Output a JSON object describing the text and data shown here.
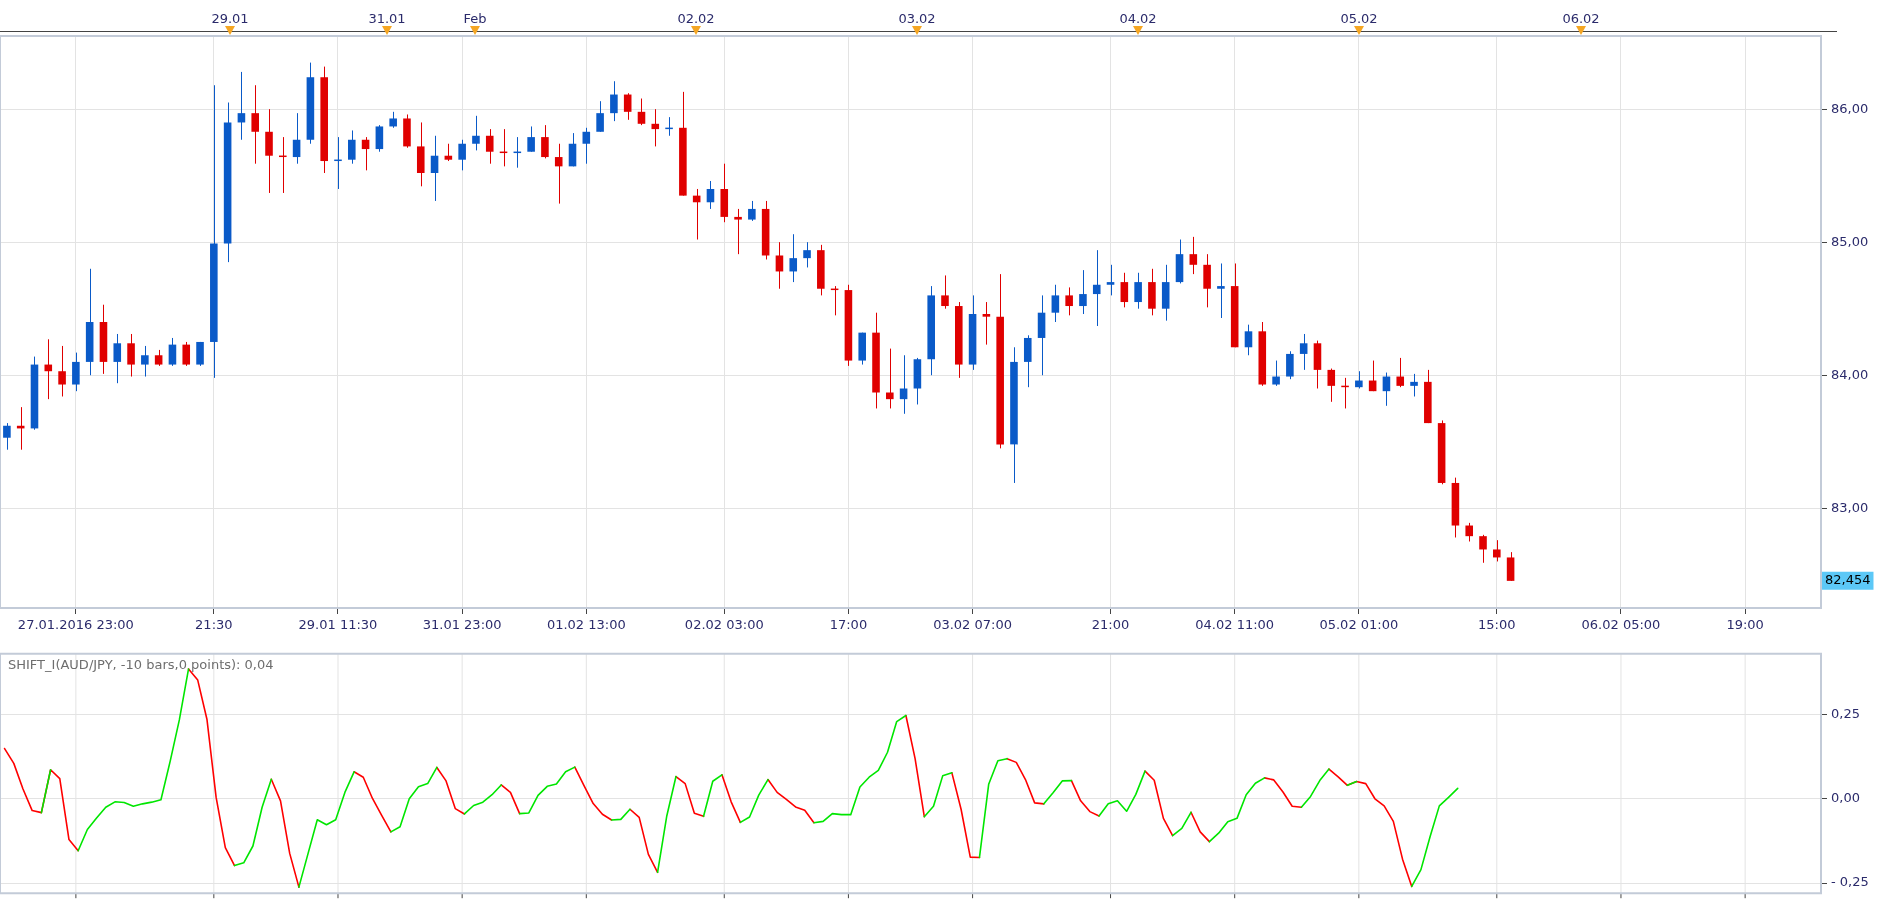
{
  "chart_data": [
    {
      "type": "candlestick",
      "categories": [
        null,
        null,
        null,
        null,
        null,
        "27.01.2016 23:00",
        null,
        null,
        null,
        null,
        null,
        null,
        null,
        null,
        null,
        "21:30",
        null,
        null,
        null,
        null,
        null,
        null,
        null,
        null,
        "29.01 11:30",
        null,
        null,
        null,
        null,
        null,
        null,
        null,
        null,
        "31.01 23:00",
        null,
        null,
        null,
        null,
        null,
        null,
        null,
        null,
        "01.02 13:00",
        null,
        null,
        null,
        null,
        null,
        null,
        null,
        null,
        null,
        "02.02 03:00",
        null,
        null,
        null,
        null,
        null,
        null,
        null,
        null,
        "17:00",
        null,
        null,
        null,
        null,
        null,
        null,
        null,
        null,
        "03.02 07:00",
        null,
        null,
        null,
        null,
        null,
        null,
        null,
        null,
        null,
        "21:00",
        null,
        null,
        null,
        null,
        null,
        null,
        null,
        null,
        "04.02 11:00",
        null,
        null,
        null,
        null,
        null,
        null,
        null,
        null,
        "05.02 01:00",
        null,
        null,
        null,
        null,
        null,
        null,
        null,
        null,
        null,
        "15:00",
        null,
        null,
        null,
        null,
        null,
        null,
        null,
        null,
        "06.02 05:00",
        null,
        null,
        null,
        null,
        null,
        null,
        null,
        null,
        "19:00",
        null,
        null,
        null,
        null,
        null
      ],
      "ohlc": [
        [
          83.53,
          83.64,
          83.44,
          83.62
        ],
        [
          83.62,
          83.76,
          83.44,
          83.6
        ],
        [
          83.6,
          84.14,
          83.59,
          84.08
        ],
        [
          84.08,
          84.27,
          83.82,
          84.03
        ],
        [
          84.03,
          84.22,
          83.84,
          83.93
        ],
        [
          83.93,
          84.17,
          83.88,
          84.1
        ],
        [
          84.1,
          84.8,
          84.0,
          84.4
        ],
        [
          84.4,
          84.53,
          84.01,
          84.1
        ],
        [
          84.1,
          84.31,
          83.94,
          84.24
        ],
        [
          84.24,
          84.31,
          83.99,
          84.08
        ],
        [
          84.08,
          84.22,
          83.99,
          84.15
        ],
        [
          84.15,
          84.19,
          84.07,
          84.08
        ],
        [
          84.08,
          84.28,
          84.07,
          84.23
        ],
        [
          84.23,
          84.25,
          84.07,
          84.08
        ],
        [
          84.08,
          84.25,
          84.07,
          84.25
        ],
        [
          84.25,
          86.18,
          83.98,
          84.99
        ],
        [
          84.99,
          86.05,
          84.85,
          85.9
        ],
        [
          85.9,
          86.28,
          85.77,
          85.97
        ],
        [
          85.97,
          86.18,
          85.59,
          85.83
        ],
        [
          85.83,
          86.0,
          85.37,
          85.65
        ],
        [
          85.65,
          85.79,
          85.37,
          85.64
        ],
        [
          85.64,
          85.97,
          85.59,
          85.77
        ],
        [
          85.77,
          86.35,
          85.74,
          86.24
        ],
        [
          86.24,
          86.32,
          85.52,
          85.61
        ],
        [
          85.61,
          85.79,
          85.4,
          85.62
        ],
        [
          85.62,
          85.84,
          85.59,
          85.77
        ],
        [
          85.77,
          85.79,
          85.54,
          85.7
        ],
        [
          85.7,
          85.88,
          85.68,
          85.87
        ],
        [
          85.87,
          85.98,
          85.86,
          85.93
        ],
        [
          85.93,
          85.96,
          85.71,
          85.72
        ],
        [
          85.72,
          85.9,
          85.42,
          85.52
        ],
        [
          85.52,
          85.8,
          85.31,
          85.65
        ],
        [
          85.65,
          85.74,
          85.61,
          85.62
        ],
        [
          85.62,
          85.77,
          85.54,
          85.74
        ],
        [
          85.74,
          85.95,
          85.69,
          85.8
        ],
        [
          85.8,
          85.85,
          85.59,
          85.68
        ],
        [
          85.68,
          85.85,
          85.57,
          85.67
        ],
        [
          85.67,
          85.79,
          85.56,
          85.68
        ],
        [
          85.68,
          85.87,
          85.68,
          85.79
        ],
        [
          85.79,
          85.88,
          85.63,
          85.64
        ],
        [
          85.64,
          85.74,
          85.29,
          85.57
        ],
        [
          85.57,
          85.82,
          85.57,
          85.74
        ],
        [
          85.74,
          85.86,
          85.59,
          85.83
        ],
        [
          85.83,
          86.06,
          85.83,
          85.97
        ],
        [
          85.97,
          86.21,
          85.91,
          86.11
        ],
        [
          86.11,
          86.12,
          85.92,
          85.98
        ],
        [
          85.98,
          86.08,
          85.88,
          85.89
        ],
        [
          85.89,
          86.0,
          85.72,
          85.85
        ],
        [
          85.85,
          85.94,
          85.8,
          85.86
        ],
        [
          85.86,
          86.13,
          85.35,
          85.35
        ],
        [
          85.35,
          85.4,
          85.02,
          85.3
        ],
        [
          85.3,
          85.46,
          85.25,
          85.4
        ],
        [
          85.4,
          85.59,
          85.15,
          85.19
        ],
        [
          85.19,
          85.25,
          84.91,
          85.17
        ],
        [
          85.17,
          85.31,
          85.16,
          85.25
        ],
        [
          85.25,
          85.31,
          84.87,
          84.9
        ],
        [
          84.9,
          85.0,
          84.65,
          84.78
        ],
        [
          84.78,
          85.06,
          84.7,
          84.88
        ],
        [
          84.88,
          85.0,
          84.81,
          84.94
        ],
        [
          84.94,
          84.98,
          84.6,
          84.65
        ],
        [
          84.65,
          84.67,
          84.45,
          84.64
        ],
        [
          84.64,
          84.68,
          84.07,
          84.11
        ],
        [
          84.11,
          84.32,
          84.08,
          84.32
        ],
        [
          84.32,
          84.47,
          83.75,
          83.87
        ],
        [
          83.87,
          84.2,
          83.75,
          83.82
        ],
        [
          83.82,
          84.15,
          83.71,
          83.9
        ],
        [
          83.9,
          84.13,
          83.78,
          84.12
        ],
        [
          84.12,
          84.67,
          84.0,
          84.6
        ],
        [
          84.6,
          84.75,
          84.5,
          84.52
        ],
        [
          84.52,
          84.55,
          83.98,
          84.08
        ],
        [
          84.08,
          84.6,
          84.04,
          84.46
        ],
        [
          84.46,
          84.55,
          84.23,
          84.44
        ],
        [
          84.44,
          84.76,
          83.45,
          83.48
        ],
        [
          83.48,
          84.21,
          83.19,
          84.1
        ],
        [
          84.1,
          84.3,
          83.91,
          84.28
        ],
        [
          84.28,
          84.6,
          84.0,
          84.47
        ],
        [
          84.47,
          84.68,
          84.4,
          84.6
        ],
        [
          84.6,
          84.66,
          84.45,
          84.52
        ],
        [
          84.52,
          84.79,
          84.46,
          84.61
        ],
        [
          84.61,
          84.94,
          84.37,
          84.68
        ],
        [
          84.68,
          84.83,
          84.6,
          84.7
        ],
        [
          84.7,
          84.77,
          84.51,
          84.55
        ],
        [
          84.55,
          84.77,
          84.5,
          84.7
        ],
        [
          84.7,
          84.8,
          84.45,
          84.5
        ],
        [
          84.5,
          84.83,
          84.41,
          84.7
        ],
        [
          84.7,
          85.02,
          84.69,
          84.91
        ],
        [
          84.91,
          85.04,
          84.76,
          84.83
        ],
        [
          84.83,
          84.91,
          84.51,
          84.65
        ],
        [
          84.65,
          84.84,
          84.43,
          84.67
        ],
        [
          84.67,
          84.84,
          84.21,
          84.21
        ],
        [
          84.21,
          84.38,
          84.15,
          84.33
        ],
        [
          84.33,
          84.4,
          83.92,
          83.93
        ],
        [
          83.93,
          84.11,
          83.92,
          83.99
        ],
        [
          83.99,
          84.18,
          83.97,
          84.16
        ],
        [
          84.16,
          84.31,
          84.04,
          84.24
        ],
        [
          84.24,
          84.26,
          83.9,
          84.04
        ],
        [
          84.04,
          84.05,
          83.8,
          83.92
        ],
        [
          83.92,
          83.98,
          83.75,
          83.91
        ],
        [
          83.91,
          84.03,
          83.9,
          83.96
        ],
        [
          83.96,
          84.11,
          83.88,
          83.88
        ],
        [
          83.88,
          84.02,
          83.77,
          83.99
        ],
        [
          83.99,
          84.13,
          83.91,
          83.92
        ],
        [
          83.92,
          84.01,
          83.84,
          83.95
        ],
        [
          83.95,
          84.04,
          83.64,
          83.64
        ],
        [
          83.64,
          83.66,
          83.18,
          83.19
        ],
        [
          83.19,
          83.23,
          82.78,
          82.87
        ],
        [
          82.87,
          82.89,
          82.75,
          82.79
        ],
        [
          82.79,
          82.8,
          82.59,
          82.69
        ],
        [
          82.69,
          82.76,
          82.6,
          82.63
        ],
        [
          82.63,
          82.67,
          82.454,
          82.454
        ],
        null,
        null,
        null,
        null,
        null,
        null,
        null,
        null,
        null,
        null,
        null,
        null,
        null,
        null,
        null,
        null,
        null,
        null,
        null,
        null,
        null,
        null
      ],
      "colors": [
        "#0a5ac8",
        "#e00000",
        "#0a5ac8",
        "#e00000",
        "#e00000",
        "#0a5ac8",
        "#0a5ac8",
        "#e00000",
        "#0a5ac8",
        "#e00000",
        "#0a5ac8",
        "#e00000",
        "#0a5ac8",
        "#e00000",
        "#0a5ac8",
        "#0a5ac8",
        "#0a5ac8",
        "#0a5ac8",
        "#e00000",
        "#e00000",
        "#e00000",
        "#0a5ac8",
        "#0a5ac8",
        "#e00000",
        "#0a5ac8",
        "#0a5ac8",
        "#e00000",
        "#0a5ac8",
        "#0a5ac8",
        "#e00000",
        "#e00000",
        "#0a5ac8",
        "#e00000",
        "#0a5ac8",
        "#0a5ac8",
        "#e00000",
        "#e00000",
        "#0a5ac8",
        "#0a5ac8",
        "#e00000",
        "#e00000",
        "#0a5ac8",
        "#0a5ac8",
        "#0a5ac8",
        "#0a5ac8",
        "#e00000",
        "#e00000",
        "#e00000",
        "#0a5ac8",
        "#e00000",
        "#e00000",
        "#0a5ac8",
        "#e00000",
        "#e00000",
        "#0a5ac8",
        "#e00000",
        "#e00000",
        "#0a5ac8",
        "#0a5ac8",
        "#e00000",
        "#e00000",
        "#e00000",
        "#0a5ac8",
        "#e00000",
        "#e00000",
        "#0a5ac8",
        "#0a5ac8",
        "#0a5ac8",
        "#e00000",
        "#e00000",
        "#0a5ac8",
        "#e00000",
        "#e00000",
        "#0a5ac8",
        "#0a5ac8",
        "#0a5ac8",
        "#0a5ac8",
        "#e00000",
        "#0a5ac8",
        "#0a5ac8",
        "#0a5ac8",
        "#e00000",
        "#0a5ac8",
        "#e00000",
        "#0a5ac8",
        "#0a5ac8",
        "#e00000",
        "#e00000",
        "#0a5ac8",
        "#e00000",
        "#0a5ac8",
        "#e00000",
        "#0a5ac8",
        "#0a5ac8",
        "#0a5ac8",
        "#e00000",
        "#e00000",
        "#e00000",
        "#0a5ac8",
        "#e00000",
        "#0a5ac8",
        "#e00000",
        "#0a5ac8",
        "#e00000",
        "#e00000",
        "#e00000",
        "#e00000",
        "#e00000",
        "#e00000",
        "#e00000",
        null,
        null,
        null,
        null,
        null,
        null,
        null,
        null,
        null,
        null,
        null,
        null,
        null,
        null,
        null,
        null,
        null,
        null,
        null,
        null,
        null,
        null
      ],
      "ylim": [
        82.25,
        86.55
      ],
      "yticks": [
        {
          "value": 83,
          "label": "83,00"
        },
        {
          "value": 84,
          "label": "84,00"
        },
        {
          "value": 85,
          "label": "85,00"
        },
        {
          "value": 86,
          "label": "86,00"
        }
      ],
      "grid": true,
      "annotations": [
        "82,454",
        "29.01",
        "31.01",
        "Feb",
        "02.02",
        "03.02",
        "04.02",
        "05.02",
        "06.02"
      ]
    },
    {
      "type": "line",
      "title": "SHIFT_I(AUD/JPY, -10 bars,0 points): 0,04",
      "categories": [
        null,
        null,
        null,
        null,
        null,
        null,
        null,
        null,
        null,
        null,
        null,
        null,
        null,
        null,
        null,
        null,
        null,
        null,
        null,
        null,
        null,
        null,
        null,
        null,
        null,
        null,
        null,
        null,
        null,
        null,
        null,
        null,
        null,
        null,
        null,
        null,
        null,
        null,
        null,
        null,
        null,
        null,
        null,
        null,
        null,
        null,
        null,
        null,
        null,
        null,
        null,
        null,
        null,
        null,
        null,
        null,
        null,
        null,
        null,
        null,
        null,
        null,
        null,
        null,
        null,
        null,
        null,
        null,
        null,
        null,
        null,
        null,
        null,
        null,
        null,
        null,
        null,
        null,
        null,
        null,
        null,
        null,
        null,
        null,
        null,
        null,
        null,
        null,
        null,
        null,
        null,
        null,
        null,
        null,
        null,
        null,
        null,
        null,
        null,
        null,
        null,
        null,
        null,
        null,
        null,
        null,
        null,
        null,
        null,
        null,
        null,
        null,
        null,
        null,
        null,
        null,
        null,
        null,
        null,
        null,
        null,
        null,
        null,
        null,
        null,
        null,
        null,
        null,
        null,
        null,
        null,
        null,
        null,
        null,
        null,
        null,
        null,
        null,
        null,
        null,
        null,
        null,
        null,
        null,
        null,
        null,
        null,
        null,
        null,
        null,
        null,
        null,
        null,
        null,
        null,
        null,
        null,
        null,
        null,
        null,
        null,
        null,
        null,
        null,
        null,
        null,
        null,
        null,
        null,
        null,
        null,
        null,
        null,
        null,
        null,
        null,
        null,
        null,
        null,
        null,
        null,
        null,
        null,
        null,
        null,
        null,
        null,
        null,
        null,
        null,
        null,
        null,
        null,
        null,
        null,
        null,
        null,
        null
      ],
      "series": [
        {
          "color": "#00e600",
          "values": [
            null,
            null,
            null,
            null,
            -0.041,
            0.086,
            null,
            null,
            -0.154,
            -0.091,
            -0.057,
            -0.025,
            -0.009,
            -0.011,
            -0.022,
            -0.015,
            -0.01,
            -0.003,
            0.111,
            0.234,
            0.385,
            null,
            null,
            null,
            null,
            -0.198,
            -0.19,
            -0.14,
            -0.025,
            0.058,
            null,
            null,
            -0.262,
            -0.162,
            -0.062,
            -0.077,
            -0.062,
            0.019,
            0.08,
            null,
            null,
            null,
            -0.098,
            -0.083,
            0,
            0.036,
            0.045,
            0.093,
            null,
            null,
            -0.045,
            -0.02,
            -0.01,
            0.012,
            0.041,
            null,
            -0.044,
            -0.042,
            0.01,
            0.037,
            0.044,
            0.08,
            0.094,
            null,
            null,
            null,
            -0.063,
            -0.061,
            -0.031,
            null,
            null,
            -0.218,
            -0.051,
            0.066,
            null,
            null,
            -0.052,
            0.052,
            0.071,
            null,
            -0.07,
            -0.054,
            0.011,
            0.057,
            null,
            null,
            null,
            null,
            -0.071,
            -0.067,
            -0.044,
            -0.047,
            -0.047,
            0.035,
            0.064,
            0.084,
            0.138,
            0.229,
            0.247,
            null,
            -0.053,
            -0.022,
            0.068,
            0.077,
            null,
            null,
            -0.174,
            0.043,
            0.113,
            0.119,
            null,
            null,
            null,
            -0.015,
            0.018,
            0.053,
            0.054,
            null,
            null,
            -0.051,
            -0.015,
            -0.006,
            -0.037,
            0.013,
            0.082,
            null,
            null,
            -0.109,
            -0.088,
            -0.04,
            null,
            -0.127,
            -0.102,
            -0.068,
            -0.058,
            0.012,
            0.046,
            0.062,
            null,
            null,
            null,
            -0.025,
            0.007,
            0.054,
            0.088,
            null,
            0.04,
            0.051,
            null,
            null,
            null,
            null,
            null,
            -0.26,
            -0.21,
            -0.112,
            -0.021,
            0.004,
            0.031,
            null,
            null,
            null,
            null,
            null,
            null,
            null,
            null,
            null,
            null,
            null,
            null,
            null,
            null,
            null,
            null,
            null,
            null,
            null,
            null,
            null,
            null,
            null,
            null,
            null,
            null,
            null,
            null,
            null,
            null,
            null,
            null,
            null,
            null,
            null,
            null,
            null,
            null,
            null
          ]
        },
        {
          "color": "#ff0000",
          "values": [
            0.149,
            0.105,
            0.029,
            -0.035,
            -0.041,
            0.086,
            0.06,
            -0.121,
            -0.154,
            null,
            null,
            null,
            null,
            null,
            null,
            null,
            null,
            null,
            null,
            null,
            0.385,
            0.352,
            0.236,
            0.004,
            -0.145,
            -0.198,
            null,
            null,
            null,
            0.058,
            -0.006,
            -0.162,
            -0.262,
            null,
            null,
            null,
            null,
            null,
            0.08,
            0.064,
            0.001,
            -0.049,
            -0.098,
            null,
            null,
            null,
            null,
            0.093,
            0.053,
            -0.029,
            -0.045,
            null,
            null,
            null,
            0.041,
            0.019,
            -0.044,
            null,
            null,
            null,
            null,
            null,
            0.094,
            0.039,
            -0.014,
            -0.046,
            -0.063,
            null,
            -0.031,
            -0.055,
            -0.165,
            -0.218,
            null,
            0.066,
            0.045,
            -0.043,
            -0.052,
            null,
            0.071,
            -0.009,
            -0.07,
            null,
            null,
            0.057,
            0.019,
            -0.002,
            -0.024,
            -0.034,
            -0.071,
            null,
            null,
            null,
            null,
            null,
            null,
            null,
            null,
            null,
            0.247,
            0.119,
            -0.053,
            null,
            null,
            0.077,
            -0.031,
            -0.173,
            -0.174,
            null,
            null,
            0.119,
            0.108,
            0.057,
            -0.012,
            -0.015,
            null,
            null,
            0.054,
            -0.006,
            -0.038,
            -0.051,
            null,
            null,
            null,
            null,
            0.082,
            0.055,
            -0.058,
            -0.109,
            null,
            -0.04,
            -0.098,
            -0.127,
            null,
            null,
            null,
            null,
            null,
            0.062,
            0.056,
            0.02,
            -0.022,
            -0.025,
            null,
            null,
            0.088,
            0.065,
            0.04,
            0.051,
            0.045,
            0,
            -0.021,
            -0.067,
            -0.179,
            -0.26,
            null,
            null,
            null,
            null,
            null,
            null,
            null,
            null,
            null,
            null,
            null,
            null,
            null,
            null,
            null,
            null,
            null,
            null,
            null,
            null,
            null,
            null,
            null,
            null,
            null,
            null,
            null,
            null,
            null,
            null,
            null,
            null,
            null,
            null,
            null,
            null,
            null,
            null,
            null,
            null,
            null,
            null,
            null,
            null
          ]
        }
      ],
      "ylim": [
        -0.28,
        0.43
      ],
      "yticks": [
        {
          "value": -0.25,
          "label": "- 0,25"
        },
        {
          "value": 0,
          "label": "0,00"
        },
        {
          "value": 0.25,
          "label": "0,25"
        }
      ],
      "grid": true,
      "tick_labels": "y",
      "marker": "none"
    }
  ]
}
